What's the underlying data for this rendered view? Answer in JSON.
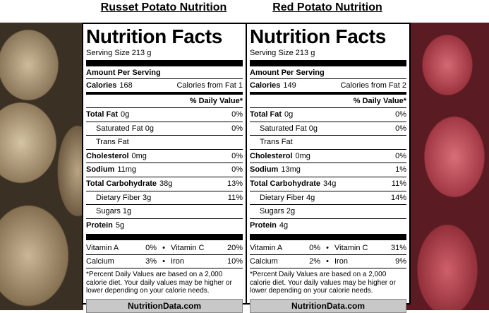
{
  "panels": [
    {
      "heading": "Russet Potato Nutrition",
      "title": "Nutrition Facts",
      "serving": "Serving Size  213 g",
      "amount_per_serving": "Amount Per Serving",
      "calories": {
        "label": "Calories",
        "amount": "168",
        "fat": "Calories from Fat 1"
      },
      "daily_value_header": "% Daily Value*",
      "rows": [
        {
          "label": "Total Fat",
          "amount": "0g",
          "dv": "0%"
        },
        {
          "sublabel": "Saturated Fat 0g",
          "dv": "0%"
        },
        {
          "sublabel": "Trans Fat"
        },
        {
          "label": "Cholesterol",
          "amount": "0mg",
          "dv": "0%"
        },
        {
          "label": "Sodium",
          "amount": "11mg",
          "dv": "0%"
        },
        {
          "label": "Total Carbohydrate",
          "amount": "38g",
          "dv": "13%"
        },
        {
          "sublabel": "Dietary Fiber 3g",
          "dv": "11%"
        },
        {
          "sublabel": "Sugars 1g"
        },
        {
          "label": "Protein",
          "amount": "5g"
        }
      ],
      "vitamins": [
        [
          {
            "name": "Vitamin A",
            "dv": "0%"
          },
          {
            "name": "Vitamin C",
            "dv": "20%"
          }
        ],
        [
          {
            "name": "Calcium",
            "dv": "3%"
          },
          {
            "name": "Iron",
            "dv": "10%"
          }
        ]
      ],
      "footnote": "*Percent Daily Values are based on a 2,000 calorie diet. Your daily values may be higher or lower depending on your calorie needs.",
      "footer": "NutritionData.com"
    },
    {
      "heading": "Red Potato Nutrition",
      "title": "Nutrition Facts",
      "serving": "Serving Size  213 g",
      "amount_per_serving": "Amount Per Serving",
      "calories": {
        "label": "Calories",
        "amount": "149",
        "fat": "Calories from Fat 2"
      },
      "daily_value_header": "% Daily Value*",
      "rows": [
        {
          "label": "Total Fat",
          "amount": "0g",
          "dv": "0%"
        },
        {
          "sublabel": "Saturated Fat 0g",
          "dv": "0%"
        },
        {
          "sublabel": "Trans Fat"
        },
        {
          "label": "Cholesterol",
          "amount": "0mg",
          "dv": "0%"
        },
        {
          "label": "Sodium",
          "amount": "13mg",
          "dv": "1%"
        },
        {
          "label": "Total Carbohydrate",
          "amount": "34g",
          "dv": "11%"
        },
        {
          "sublabel": "Dietary Fiber 4g",
          "dv": "14%"
        },
        {
          "sublabel": "Sugars 2g"
        },
        {
          "label": "Protein",
          "amount": "4g"
        }
      ],
      "vitamins": [
        [
          {
            "name": "Vitamin A",
            "dv": "0%"
          },
          {
            "name": "Vitamin C",
            "dv": "31%"
          }
        ],
        [
          {
            "name": "Calcium",
            "dv": "2%"
          },
          {
            "name": "Iron",
            "dv": "9%"
          }
        ]
      ],
      "footnote": "*Percent Daily Values are based on a 2,000 calorie diet. Your daily values may be higher or lower depending on your calorie needs.",
      "footer": "NutritionData.com"
    }
  ]
}
